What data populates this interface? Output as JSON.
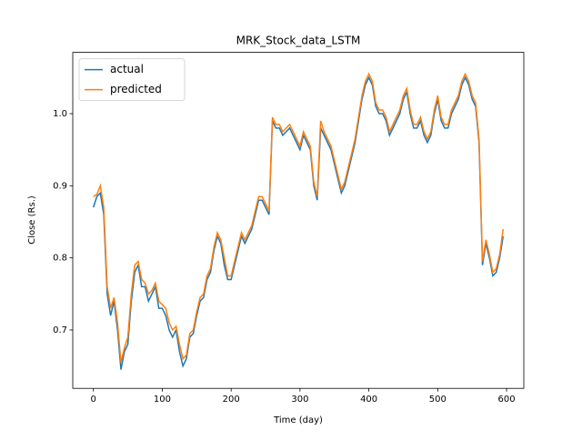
{
  "chart_data": {
    "type": "line",
    "title": "MRK_Stock_data_LSTM",
    "x_label": "Time (day)",
    "y_label": "Close (Rs.)",
    "x": [
      0,
      5,
      10,
      15,
      20,
      25,
      30,
      35,
      40,
      45,
      50,
      55,
      60,
      65,
      70,
      75,
      80,
      85,
      90,
      95,
      100,
      105,
      110,
      115,
      120,
      125,
      130,
      135,
      140,
      145,
      150,
      155,
      160,
      165,
      170,
      175,
      180,
      185,
      190,
      195,
      200,
      205,
      210,
      215,
      220,
      225,
      230,
      235,
      240,
      245,
      250,
      255,
      260,
      265,
      270,
      275,
      280,
      285,
      290,
      295,
      300,
      305,
      310,
      315,
      320,
      325,
      330,
      335,
      340,
      345,
      350,
      355,
      360,
      365,
      370,
      375,
      380,
      385,
      390,
      395,
      400,
      405,
      410,
      415,
      420,
      425,
      430,
      435,
      440,
      445,
      450,
      455,
      460,
      465,
      470,
      475,
      480,
      485,
      490,
      495,
      500,
      505,
      510,
      515,
      520,
      525,
      530,
      535,
      540,
      545,
      550,
      555,
      560,
      565,
      570,
      575,
      580,
      585,
      590,
      595
    ],
    "series": [
      {
        "name": "actual",
        "color": "#1f77b4",
        "values": [
          0.87,
          0.885,
          0.89,
          0.86,
          0.75,
          0.72,
          0.74,
          0.7,
          0.645,
          0.67,
          0.68,
          0.74,
          0.78,
          0.79,
          0.76,
          0.76,
          0.74,
          0.75,
          0.76,
          0.73,
          0.73,
          0.72,
          0.7,
          0.69,
          0.7,
          0.67,
          0.65,
          0.66,
          0.69,
          0.695,
          0.72,
          0.74,
          0.745,
          0.77,
          0.78,
          0.81,
          0.83,
          0.82,
          0.79,
          0.77,
          0.77,
          0.79,
          0.81,
          0.83,
          0.82,
          0.83,
          0.84,
          0.86,
          0.88,
          0.88,
          0.87,
          0.86,
          0.99,
          0.98,
          0.98,
          0.97,
          0.975,
          0.98,
          0.97,
          0.96,
          0.95,
          0.97,
          0.96,
          0.95,
          0.9,
          0.88,
          0.98,
          0.97,
          0.96,
          0.95,
          0.93,
          0.91,
          0.89,
          0.9,
          0.92,
          0.94,
          0.96,
          0.99,
          1.02,
          1.04,
          1.05,
          1.04,
          1.01,
          1.0,
          1.0,
          0.99,
          0.97,
          0.98,
          0.99,
          1.0,
          1.02,
          1.03,
          1.0,
          0.98,
          0.98,
          0.99,
          0.97,
          0.96,
          0.97,
          1.0,
          1.02,
          0.99,
          0.98,
          0.98,
          1.0,
          1.01,
          1.02,
          1.04,
          1.05,
          1.04,
          1.02,
          1.01,
          0.96,
          0.79,
          0.82,
          0.8,
          0.775,
          0.78,
          0.8,
          0.83
        ]
      },
      {
        "name": "predicted",
        "color": "#ff7f0e",
        "values": [
          0.885,
          0.888,
          0.9,
          0.87,
          0.76,
          0.73,
          0.745,
          0.71,
          0.655,
          0.675,
          0.69,
          0.75,
          0.79,
          0.795,
          0.77,
          0.765,
          0.75,
          0.755,
          0.765,
          0.74,
          0.735,
          0.73,
          0.71,
          0.7,
          0.705,
          0.68,
          0.66,
          0.665,
          0.695,
          0.7,
          0.725,
          0.745,
          0.75,
          0.775,
          0.785,
          0.815,
          0.835,
          0.825,
          0.8,
          0.775,
          0.775,
          0.795,
          0.815,
          0.835,
          0.825,
          0.835,
          0.845,
          0.865,
          0.885,
          0.885,
          0.875,
          0.865,
          0.995,
          0.985,
          0.985,
          0.975,
          0.98,
          0.985,
          0.975,
          0.965,
          0.955,
          0.975,
          0.965,
          0.955,
          0.905,
          0.885,
          0.99,
          0.975,
          0.965,
          0.955,
          0.935,
          0.915,
          0.895,
          0.905,
          0.925,
          0.945,
          0.965,
          0.995,
          1.025,
          1.045,
          1.055,
          1.045,
          1.015,
          1.005,
          1.005,
          0.995,
          0.975,
          0.985,
          0.995,
          1.005,
          1.025,
          1.035,
          1.005,
          0.985,
          0.985,
          0.995,
          0.975,
          0.965,
          0.975,
          1.005,
          1.025,
          0.995,
          0.985,
          0.985,
          1.005,
          1.015,
          1.025,
          1.045,
          1.055,
          1.045,
          1.025,
          1.015,
          0.965,
          0.795,
          0.825,
          0.805,
          0.78,
          0.785,
          0.805,
          0.84
        ]
      }
    ],
    "xlim": [
      -30,
      625
    ],
    "ylim": [
      0.619,
      1.085
    ],
    "xticks": [
      0,
      100,
      200,
      300,
      400,
      500,
      600
    ],
    "yticks": [
      0.7,
      0.8,
      0.9,
      {
        "value": 1,
        "label": "1.0"
      }
    ],
    "legend": "upper left"
  }
}
